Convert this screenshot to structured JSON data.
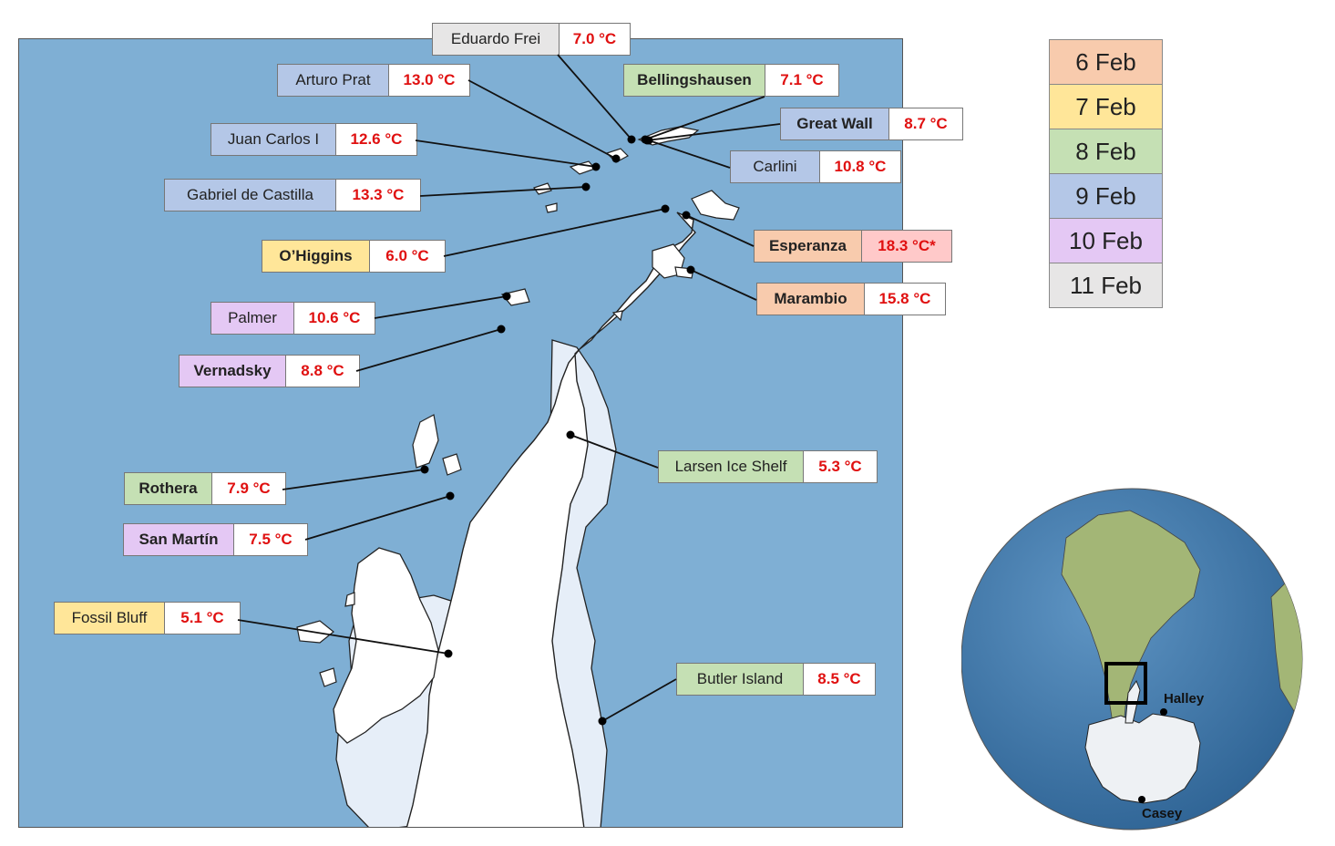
{
  "stations": [
    {
      "name": "Eduardo Frei",
      "temp": "7.0 °C",
      "date": "11 Feb",
      "bold": false
    },
    {
      "name": "Arturo Prat",
      "temp": "13.0 °C",
      "date": "9 Feb",
      "bold": false
    },
    {
      "name": "Bellingshausen",
      "temp": "7.1 °C",
      "date": "8 Feb",
      "bold": true
    },
    {
      "name": "Great Wall",
      "temp": "8.7 °C",
      "date": "9 Feb",
      "bold": true
    },
    {
      "name": "Juan Carlos I",
      "temp": "12.6 °C",
      "date": "9 Feb",
      "bold": false
    },
    {
      "name": "Carlini",
      "temp": "10.8 °C",
      "date": "9 Feb",
      "bold": false
    },
    {
      "name": "Gabriel de Castilla",
      "temp": "13.3 °C",
      "date": "9 Feb",
      "bold": false
    },
    {
      "name": "O’Higgins",
      "temp": "6.0 °C",
      "date": "7 Feb",
      "bold": true
    },
    {
      "name": "Esperanza",
      "temp": "18.3 °C*",
      "date": "6 Feb",
      "bold": true
    },
    {
      "name": "Marambio",
      "temp": "15.8 °C",
      "date": "6 Feb",
      "bold": true
    },
    {
      "name": "Palmer",
      "temp": "10.6 °C",
      "date": "10 Feb",
      "bold": false
    },
    {
      "name": "Vernadsky",
      "temp": "8.8 °C",
      "date": "10 Feb",
      "bold": true
    },
    {
      "name": "Larsen Ice Shelf",
      "temp": "5.3 °C",
      "date": "8 Feb",
      "bold": false
    },
    {
      "name": "Rothera",
      "temp": "7.9 °C",
      "date": "8 Feb",
      "bold": true
    },
    {
      "name": "San Martín",
      "temp": "7.5 °C",
      "date": "10 Feb",
      "bold": true
    },
    {
      "name": "Fossil Bluff",
      "temp": "5.1 °C",
      "date": "7 Feb",
      "bold": false
    },
    {
      "name": "Butler Island",
      "temp": "8.5 °C",
      "date": "8 Feb",
      "bold": false
    }
  ],
  "legend": [
    {
      "label": "6 Feb",
      "color": "#f8cbad"
    },
    {
      "label": "7 Feb",
      "color": "#ffe699"
    },
    {
      "label": "8 Feb",
      "color": "#c5e0b4"
    },
    {
      "label": "9 Feb",
      "color": "#b4c7e7"
    },
    {
      "label": "10 Feb",
      "color": "#e4c8f4"
    },
    {
      "label": "11 Feb",
      "color": "#e7e6e6"
    }
  ],
  "esperanza_temp_bg": "#ffc9c9",
  "colors": {
    "ocean": "#7fafd4",
    "ice_shelf": "#e6eef8",
    "land": "#ffffff",
    "globe_ocean": "#4a7fb0",
    "globe_land": "#a8b878"
  },
  "globe": {
    "labels": [
      "Halley",
      "Casey"
    ]
  }
}
